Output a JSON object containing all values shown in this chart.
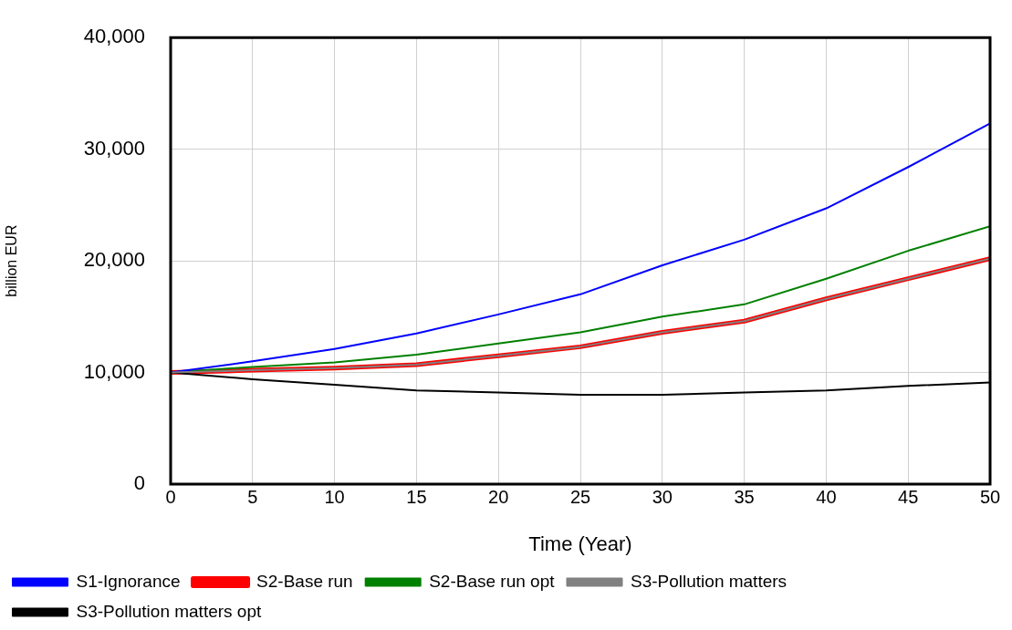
{
  "chart_data": {
    "type": "line",
    "xlabel": "Time (Year)",
    "ylabel": "billion EUR",
    "x": [
      0,
      5,
      10,
      15,
      20,
      25,
      30,
      35,
      40,
      45,
      50
    ],
    "series": [
      {
        "name": "S1-Ignorance",
        "color": "#0000ff",
        "values": [
          10000,
          11000,
          12100,
          13500,
          15200,
          17000,
          19600,
          21900,
          24700,
          28400,
          32300
        ]
      },
      {
        "name": "S2-Base run",
        "color": "#ff0000",
        "values": [
          10000,
          10200,
          10400,
          10700,
          11500,
          12300,
          13600,
          14600,
          16600,
          18400,
          20200
        ]
      },
      {
        "name": "S2-Base run opt",
        "color": "#008000",
        "values": [
          10000,
          10500,
          10900,
          11600,
          12600,
          13600,
          15000,
          16100,
          18400,
          20900,
          23100
        ]
      },
      {
        "name": "S3-Pollution matters",
        "color": "#808080",
        "values": [
          10000,
          10200,
          10400,
          10700,
          11500,
          12300,
          13600,
          14600,
          16600,
          18400,
          20200
        ]
      },
      {
        "name": "S3-Pollution matters opt",
        "color": "#000000",
        "values": [
          10000,
          9400,
          8900,
          8400,
          8200,
          8000,
          8000,
          8200,
          8400,
          8800,
          9100
        ]
      }
    ],
    "xlim": [
      0,
      50
    ],
    "xticks": [
      0,
      5,
      10,
      15,
      20,
      25,
      30,
      35,
      40,
      45,
      50
    ],
    "ylim": [
      0,
      40000
    ],
    "yticks": [
      0,
      {
        "value": 10000,
        "label": "10,000"
      },
      {
        "value": 20000,
        "label": "20,000"
      },
      {
        "value": 30000,
        "label": "30,000"
      },
      {
        "value": 40000,
        "label": "40,000"
      }
    ],
    "grid": true,
    "legend": "bottom",
    "marker": "none",
    "line_style": "solid"
  }
}
